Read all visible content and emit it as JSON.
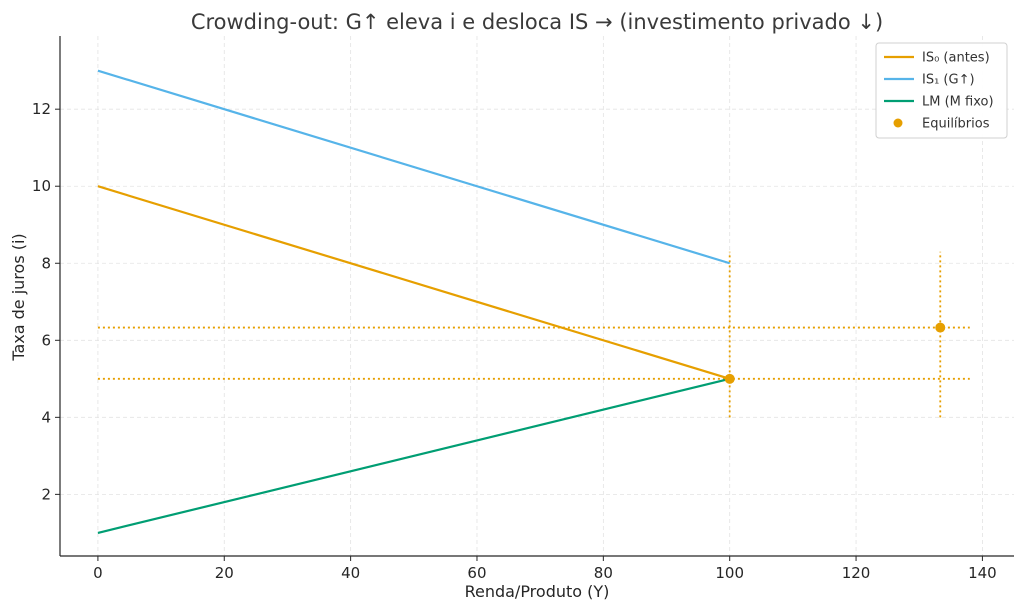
{
  "chart_data": {
    "type": "line",
    "title": "Crowding-out: G↑ eleva i e desloca IS → (investimento privado ↓)",
    "xlabel": "Renda/Produto (Y)",
    "ylabel": "Taxa de juros (i)",
    "xlim": [
      -6,
      145
    ],
    "ylim": [
      0.4,
      13.9
    ],
    "xticks": [
      0,
      20,
      40,
      60,
      80,
      100,
      120,
      140
    ],
    "yticks": [
      2,
      4,
      6,
      8,
      10,
      12
    ],
    "grid": true,
    "legend_position": "top-right",
    "series": [
      {
        "name": "IS₀ (antes)",
        "color": "#E69F00",
        "x": [
          0,
          100
        ],
        "y": [
          10,
          5
        ]
      },
      {
        "name": "IS₁ (G↑)",
        "color": "#56B4E9",
        "x": [
          0,
          100
        ],
        "y": [
          13,
          8
        ]
      },
      {
        "name": "LM (M fixo)",
        "color": "#009E73",
        "x": [
          0,
          100
        ],
        "y": [
          1,
          5
        ]
      }
    ],
    "points": {
      "name": "Equilíbrios",
      "color": "#E69F00",
      "x": [
        100,
        133.33
      ],
      "y": [
        5,
        6.33
      ]
    },
    "guide_lines": {
      "color": "#E69F00",
      "horizontal": [
        {
          "y": 5,
          "x_range": [
            0,
            138
          ]
        },
        {
          "y": 6.33,
          "x_range": [
            0,
            138
          ]
        }
      ],
      "vertical": [
        {
          "x": 100,
          "y_range": [
            4,
            8.3
          ]
        },
        {
          "x": 133.33,
          "y_range": [
            4,
            8.3
          ]
        }
      ]
    }
  }
}
